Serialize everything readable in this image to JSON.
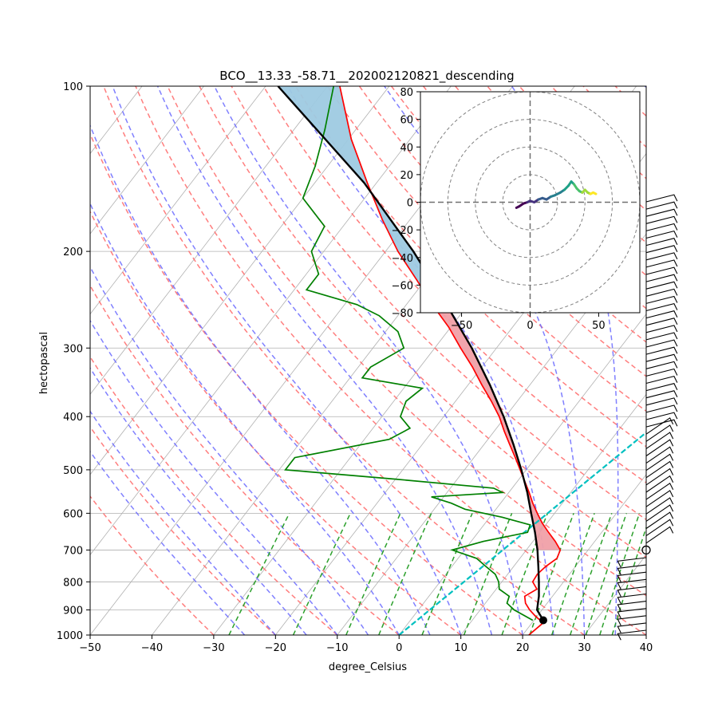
{
  "chart_data": [
    {
      "type": "skew-t",
      "title": "BCO__13.33_-58.71__202002120821_descending",
      "xlabel": "degree_Celsius",
      "ylabel": "hectopascal",
      "xlim": [
        -50,
        40
      ],
      "ylim_hpa": [
        1000,
        100
      ],
      "y_scale": "log-pressure",
      "x_ticks": [
        "−50",
        "−40",
        "−30",
        "−20",
        "−10",
        "0",
        "10",
        "20",
        "30",
        "40"
      ],
      "y_ticks": [
        "100",
        "200",
        "300",
        "400",
        "500",
        "600",
        "700",
        "800",
        "900",
        "1000"
      ],
      "grid": true,
      "colors": {
        "temperature": "#ff0000",
        "dewpoint": "#008000",
        "parcel": "#000000",
        "cape_fill": "#9ecae1",
        "cin_fill": "#f0a0a8",
        "dry_adiabat": "#ff7070",
        "moist_adiabat": "#6a6aff",
        "mixing_ratio": "#2ca02c",
        "lcl_line": "#00c0c0"
      },
      "temperature_profile": [
        [
          1000,
          21.0
        ],
        [
          950,
          21.8
        ],
        [
          925,
          19.8
        ],
        [
          900,
          18.0
        ],
        [
          875,
          16.5
        ],
        [
          850,
          15.5
        ],
        [
          825,
          16.6
        ],
        [
          800,
          15.0
        ],
        [
          775,
          14.8
        ],
        [
          750,
          15.2
        ],
        [
          725,
          16.0
        ],
        [
          700,
          15.5
        ],
        [
          675,
          13.6
        ],
        [
          650,
          11.4
        ],
        [
          625,
          9.2
        ],
        [
          600,
          7.2
        ],
        [
          575,
          5.2
        ],
        [
          550,
          3.3
        ],
        [
          525,
          1.2
        ],
        [
          500,
          -1.0
        ],
        [
          475,
          -3.3
        ],
        [
          450,
          -5.8
        ],
        [
          425,
          -8.4
        ],
        [
          400,
          -11.0
        ],
        [
          375,
          -14.2
        ],
        [
          350,
          -17.8
        ],
        [
          325,
          -21.5
        ],
        [
          300,
          -25.8
        ],
        [
          275,
          -30.3
        ],
        [
          250,
          -35.8
        ],
        [
          225,
          -41.5
        ],
        [
          200,
          -48.0
        ],
        [
          175,
          -54.5
        ],
        [
          150,
          -61.5
        ],
        [
          125,
          -69.5
        ],
        [
          100,
          -78.0
        ]
      ],
      "dewpoint_profile": [
        [
          940,
          19.8
        ],
        [
          900,
          15.5
        ],
        [
          875,
          13.5
        ],
        [
          850,
          13.0
        ],
        [
          825,
          10.5
        ],
        [
          800,
          9.5
        ],
        [
          775,
          8.0
        ],
        [
          750,
          5.5
        ],
        [
          725,
          3.0
        ],
        [
          700,
          -2.0
        ],
        [
          675,
          2.0
        ],
        [
          650,
          8.0
        ],
        [
          630,
          7.5
        ],
        [
          610,
          2.0
        ],
        [
          590,
          -5.0
        ],
        [
          575,
          -8.0
        ],
        [
          560,
          -12.0
        ],
        [
          550,
          -1.0
        ],
        [
          540,
          -3.0
        ],
        [
          520,
          -20.0
        ],
        [
          500,
          -39.0
        ],
        [
          475,
          -39.0
        ],
        [
          440,
          -26.0
        ],
        [
          420,
          -24.0
        ],
        [
          400,
          -27.0
        ],
        [
          375,
          -28.0
        ],
        [
          355,
          -27.0
        ],
        [
          340,
          -38.0
        ],
        [
          325,
          -38.0
        ],
        [
          300,
          -35.0
        ],
        [
          280,
          -38.0
        ],
        [
          262,
          -43.0
        ],
        [
          250,
          -48.0
        ],
        [
          235,
          -58.0
        ],
        [
          220,
          -58.0
        ],
        [
          200,
          -62.0
        ],
        [
          180,
          -63.0
        ],
        [
          160,
          -70.0
        ],
        [
          140,
          -72.0
        ],
        [
          120,
          -75.0
        ],
        [
          100,
          -79.0
        ]
      ],
      "parcel_profile": [
        [
          940,
          21.5
        ],
        [
          900,
          19.2
        ],
        [
          850,
          17.8
        ],
        [
          800,
          16.0
        ],
        [
          750,
          14.0
        ],
        [
          700,
          11.8
        ],
        [
          650,
          9.2
        ],
        [
          600,
          6.2
        ],
        [
          550,
          3.0
        ],
        [
          500,
          -0.8
        ],
        [
          450,
          -5.2
        ],
        [
          400,
          -10.3
        ],
        [
          350,
          -16.5
        ],
        [
          300,
          -24.0
        ],
        [
          250,
          -33.5
        ],
        [
          200,
          -45.5
        ],
        [
          150,
          -62.0
        ],
        [
          100,
          -88.0
        ]
      ],
      "hodograph": {
        "xlim": [
          -80,
          80
        ],
        "ylim": [
          -80,
          80
        ],
        "x_ticks": [
          "−50",
          "0",
          "50"
        ],
        "y_ticks": [
          "80",
          "60",
          "40",
          "20",
          "0",
          "−20",
          "−40",
          "−60",
          "−80"
        ],
        "rings": [
          20,
          40,
          60,
          80
        ],
        "points": [
          [
            -10,
            -4
          ],
          [
            -8,
            -3
          ],
          [
            -5,
            -1
          ],
          [
            -2,
            0
          ],
          [
            0,
            1
          ],
          [
            3,
            0
          ],
          [
            6,
            2
          ],
          [
            9,
            3
          ],
          [
            12,
            2
          ],
          [
            15,
            4
          ],
          [
            18,
            5
          ],
          [
            22,
            7
          ],
          [
            25,
            9
          ],
          [
            28,
            12
          ],
          [
            30,
            15
          ],
          [
            32,
            13
          ],
          [
            34,
            10
          ],
          [
            36,
            8
          ],
          [
            38,
            7
          ],
          [
            40,
            9
          ],
          [
            42,
            7
          ],
          [
            44,
            6
          ],
          [
            46,
            7
          ],
          [
            48,
            6
          ]
        ]
      }
    }
  ]
}
